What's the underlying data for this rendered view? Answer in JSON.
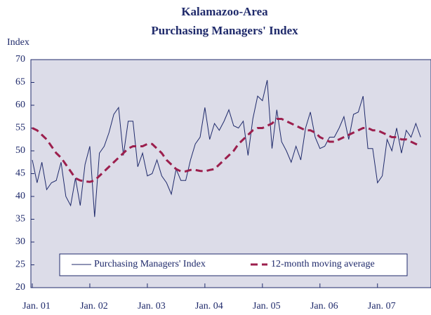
{
  "chart_data": {
    "type": "line",
    "title": "Kalamazoo-Area",
    "subtitle": "Purchasing Managers' Index",
    "y_label": "Index",
    "categories": [
      "Jan. 01",
      null,
      null,
      null,
      null,
      null,
      null,
      null,
      null,
      null,
      null,
      null,
      "Jan. 02",
      null,
      null,
      null,
      null,
      null,
      null,
      null,
      null,
      null,
      null,
      null,
      "Jan. 03",
      null,
      null,
      null,
      null,
      null,
      null,
      null,
      null,
      null,
      null,
      null,
      "Jan. 04",
      null,
      null,
      null,
      null,
      null,
      null,
      null,
      null,
      null,
      null,
      null,
      "Jan. 05",
      null,
      null,
      null,
      null,
      null,
      null,
      null,
      null,
      null,
      null,
      null,
      "Jan. 06",
      null,
      null,
      null,
      null,
      null,
      null,
      null,
      null,
      null,
      null,
      null,
      "Jan. 07",
      null,
      null,
      null,
      null,
      null,
      null,
      null,
      null,
      null
    ],
    "series": [
      {
        "name": "Purchasing Managers' Index",
        "color": "#1f2a6b",
        "dashed": false,
        "values": [
          48,
          43,
          47.5,
          41.5,
          43,
          43.5,
          47.5,
          40,
          38,
          44,
          38,
          47,
          51,
          35.5,
          49.5,
          51,
          54,
          58,
          59.5,
          49,
          56.5,
          56.5,
          46.5,
          49.5,
          44.5,
          45,
          48,
          44.5,
          43,
          40.5,
          46,
          43.5,
          43.5,
          48,
          51.5,
          53,
          59.5,
          52.5,
          56,
          54.5,
          56.5,
          59,
          55.5,
          55,
          56.5,
          49,
          57,
          62,
          61,
          65.5,
          50.5,
          59,
          52,
          50,
          47.5,
          51,
          48,
          55,
          58.5,
          53,
          50.5,
          51,
          53,
          53,
          55,
          57.5,
          52.5,
          58,
          58.5,
          62,
          50.5,
          50.5,
          43,
          44.5,
          52.5,
          50,
          55,
          49.5,
          54.5,
          53,
          56,
          53
        ]
      },
      {
        "name": "12-month moving average",
        "color": "#9c1f4d",
        "dashed": true,
        "values": [
          55,
          54.5,
          53.5,
          52.5,
          51,
          49.5,
          48.5,
          47,
          45.5,
          44,
          43.5,
          43.3,
          43.2,
          43.5,
          44.5,
          45.5,
          46.5,
          47.5,
          48.5,
          49.5,
          50.5,
          51,
          51,
          51,
          51.5,
          51.5,
          50.5,
          49.5,
          48,
          47,
          46,
          45.5,
          45.5,
          45.8,
          45.8,
          45.6,
          45.5,
          45.8,
          46,
          47,
          48,
          49,
          50,
          51.5,
          52.5,
          53.5,
          54.5,
          55,
          55,
          55.5,
          56,
          57,
          57,
          56.5,
          56,
          55.5,
          55,
          54.5,
          54.5,
          54,
          53,
          52.5,
          52,
          52,
          52.5,
          53,
          53.5,
          54,
          54.5,
          55,
          55,
          54.5,
          54.5,
          54,
          53.5,
          53,
          53,
          52.5,
          52.5,
          52,
          51.5,
          51
        ]
      }
    ],
    "ylim": [
      20,
      70
    ],
    "yticks": [
      20,
      25,
      30,
      35,
      40,
      45,
      50,
      55,
      60,
      65,
      70
    ],
    "grid": false
  }
}
